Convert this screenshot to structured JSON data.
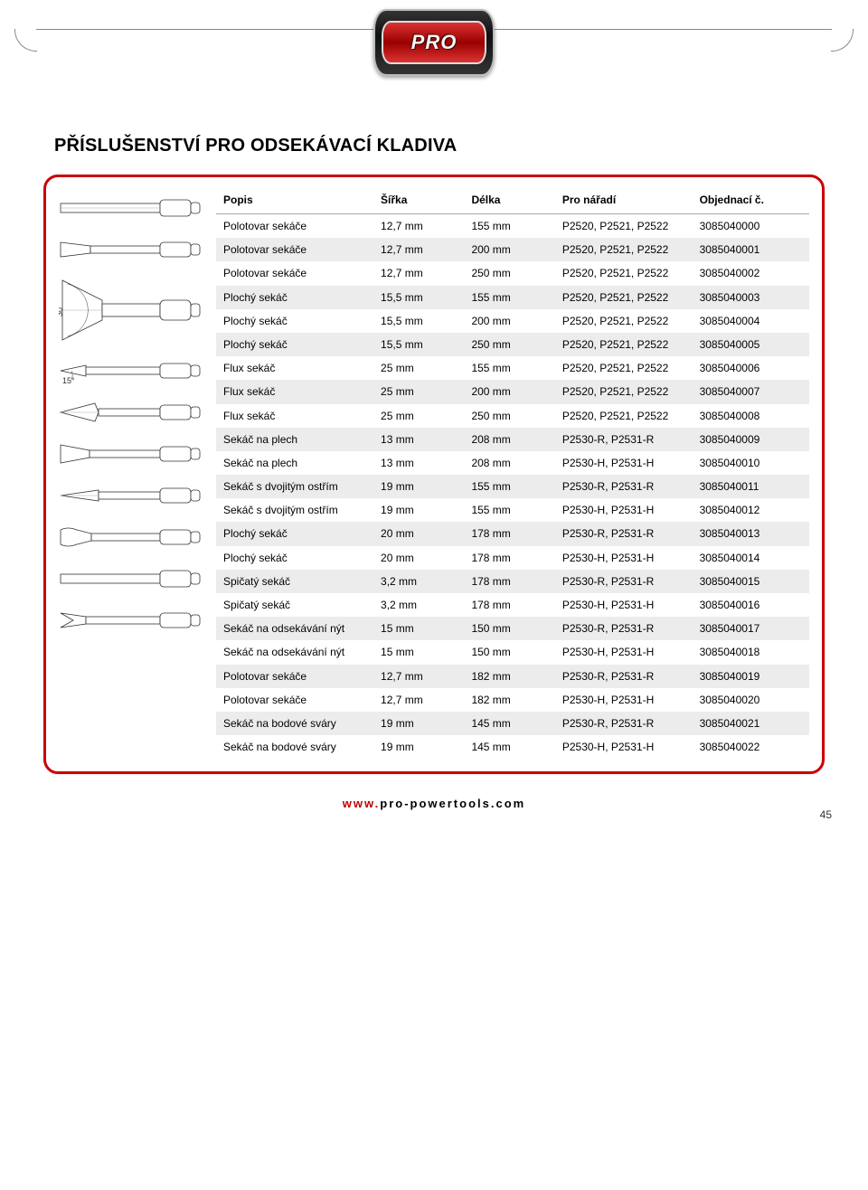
{
  "logo_text": "PRO",
  "page_title": "PŘÍSLUŠENSTVÍ PRO ODSEKÁVACÍ KLADIVA",
  "footer_url_prefix": "www.",
  "footer_url_rest": "pro-powertools.com",
  "page_number": "45",
  "colors": {
    "frame_border": "#c00",
    "stripe_bg": "#ececec",
    "header_underline": "#aaa",
    "logo_red": "#c01818",
    "logo_dark": "#1a1a1a"
  },
  "table": {
    "headers": [
      "Popis",
      "Šířka",
      "Délka",
      "Pro nářadí",
      "Objednací č."
    ],
    "rows": [
      {
        "popis": "Polotovar sekáče",
        "sirka": "12,7 mm",
        "delka": "155 mm",
        "naradi": "P2520, P2521, P2522",
        "obj": "3085040000"
      },
      {
        "popis": "Polotovar sekáče",
        "sirka": "12,7 mm",
        "delka": "200 mm",
        "naradi": "P2520, P2521, P2522",
        "obj": "3085040001"
      },
      {
        "popis": "Polotovar sekáče",
        "sirka": "12,7 mm",
        "delka": "250 mm",
        "naradi": "P2520, P2521, P2522",
        "obj": "3085040002"
      },
      {
        "popis": "Plochý sekáč",
        "sirka": "15,5 mm",
        "delka": "155 mm",
        "naradi": "P2520, P2521, P2522",
        "obj": "3085040003"
      },
      {
        "popis": "Plochý sekáč",
        "sirka": "15,5 mm",
        "delka": "200 mm",
        "naradi": "P2520, P2521, P2522",
        "obj": "3085040004"
      },
      {
        "popis": "Plochý sekáč",
        "sirka": "15,5 mm",
        "delka": "250 mm",
        "naradi": "P2520, P2521, P2522",
        "obj": "3085040005"
      },
      {
        "popis": "Flux sekáč",
        "sirka": "25 mm",
        "delka": "155 mm",
        "naradi": "P2520, P2521, P2522",
        "obj": "3085040006"
      },
      {
        "popis": "Flux sekáč",
        "sirka": "25 mm",
        "delka": "200 mm",
        "naradi": "P2520, P2521, P2522",
        "obj": "3085040007"
      },
      {
        "popis": "Flux sekáč",
        "sirka": "25 mm",
        "delka": "250 mm",
        "naradi": "P2520, P2521, P2522",
        "obj": "3085040008"
      },
      {
        "popis": "Sekáč na plech",
        "sirka": "13 mm",
        "delka": "208 mm",
        "naradi": "P2530-R, P2531-R",
        "obj": "3085040009"
      },
      {
        "popis": "Sekáč na plech",
        "sirka": "13 mm",
        "delka": "208 mm",
        "naradi": "P2530-H, P2531-H",
        "obj": "3085040010"
      },
      {
        "popis": "Sekáč s dvojitým ostřím",
        "sirka": "19 mm",
        "delka": "155 mm",
        "naradi": "P2530-R, P2531-R",
        "obj": "3085040011"
      },
      {
        "popis": "Sekáč s dvojitým ostřím",
        "sirka": "19 mm",
        "delka": "155 mm",
        "naradi": "P2530-H, P2531-H",
        "obj": "3085040012"
      },
      {
        "popis": "Plochý sekáč",
        "sirka": "20 mm",
        "delka": "178 mm",
        "naradi": "P2530-R, P2531-R",
        "obj": "3085040013"
      },
      {
        "popis": "Plochý sekáč",
        "sirka": "20 mm",
        "delka": "178 mm",
        "naradi": "P2530-H, P2531-H",
        "obj": "3085040014"
      },
      {
        "popis": "Spičatý sekáč",
        "sirka": "3,2 mm",
        "delka": "178 mm",
        "naradi": "P2530-R, P2531-R",
        "obj": "3085040015"
      },
      {
        "popis": "Spičatý sekáč",
        "sirka": "3,2 mm",
        "delka": "178 mm",
        "naradi": "P2530-H, P2531-H",
        "obj": "3085040016"
      },
      {
        "popis": "Sekáč na odsekávání nýt",
        "sirka": "15 mm",
        "delka": "150 mm",
        "naradi": "P2530-R, P2531-R",
        "obj": "3085040017"
      },
      {
        "popis": "Sekáč na odsekávání nýt",
        "sirka": "15 mm",
        "delka": "150 mm",
        "naradi": "P2530-H, P2531-H",
        "obj": "3085040018"
      },
      {
        "popis": "Polotovar sekáče",
        "sirka": "12,7 mm",
        "delka": "182 mm",
        "naradi": "P2530-R, P2531-R",
        "obj": "3085040019"
      },
      {
        "popis": "Polotovar sekáče",
        "sirka": "12,7 mm",
        "delka": "182 mm",
        "naradi": "P2530-H, P2531-H",
        "obj": "3085040020"
      },
      {
        "popis": "Sekáč na bodové sváry",
        "sirka": "19 mm",
        "delka": "145 mm",
        "naradi": "P2530-R, P2531-R",
        "obj": "3085040021"
      },
      {
        "popis": "Sekáč na bodové sváry",
        "sirka": "19 mm",
        "delka": "145 mm",
        "naradi": "P2530-H, P2531-H",
        "obj": "3085040022"
      }
    ]
  },
  "diagram_angles": {
    "flux": "30°",
    "plech": "15°"
  }
}
